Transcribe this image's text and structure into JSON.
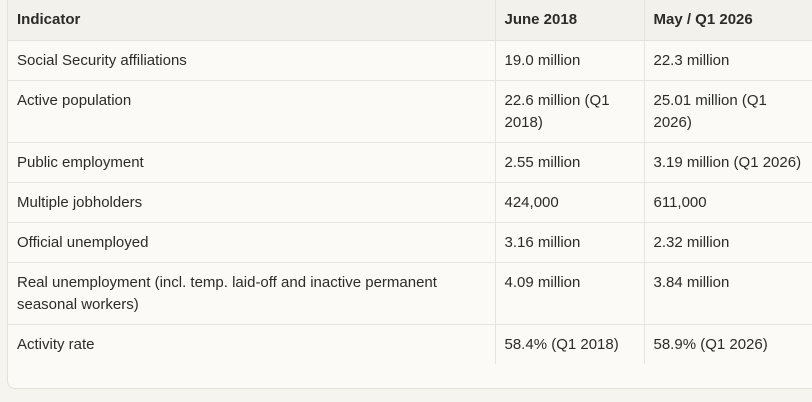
{
  "table": {
    "headers": [
      "Indicator",
      "June 2018",
      "May / Q1 2026"
    ],
    "rows": [
      [
        "Social Security affiliations",
        "19.0 million",
        "22.3 million"
      ],
      [
        "Active population",
        "22.6 million (Q1 2018)",
        "25.01 million (Q1 2026)"
      ],
      [
        "Public employment",
        "2.55 million",
        "3.19 million (Q1 2026)"
      ],
      [
        "Multiple jobholders",
        "424,000",
        "611,000"
      ],
      [
        "Official unemployed",
        "3.16 million",
        "2.32 million"
      ],
      [
        "Real unemployment (incl. temp. laid-off and inactive permanent seasonal workers)",
        "4.09 million",
        "3.84 million"
      ],
      [
        "Activity rate",
        "58.4% (Q1 2018)",
        "58.9% (Q1 2026)"
      ]
    ]
  }
}
